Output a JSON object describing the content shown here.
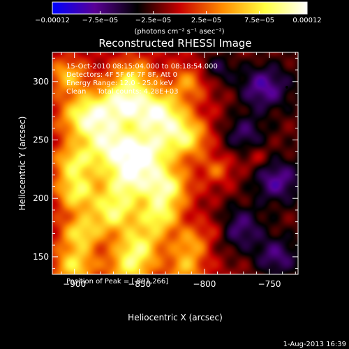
{
  "chart_data": {
    "type": "heatmap",
    "title": "Reconstructed RHESSI Image",
    "xlabel": "Heliocentric X (arcsec)",
    "ylabel": "Heliocentric Y (arcsec)",
    "xlim": [
      -917,
      -728
    ],
    "ylim": [
      135,
      325
    ],
    "x_ticks": [
      {
        "value": -900,
        "label": "−900"
      },
      {
        "value": -850,
        "label": "−850"
      },
      {
        "value": -800,
        "label": "−800"
      },
      {
        "value": -750,
        "label": "−750"
      }
    ],
    "y_ticks": [
      {
        "value": 150,
        "label": "150"
      },
      {
        "value": 200,
        "label": "200"
      },
      {
        "value": 250,
        "label": "250"
      },
      {
        "value": 300,
        "label": "300"
      }
    ],
    "colorbar": {
      "min": -0.00012,
      "max": 0.00012,
      "unit_label": "(photons cm⁻² s⁻¹ asec⁻²)",
      "ticks": [
        {
          "value": -0.00012,
          "label": "−0.00012"
        },
        {
          "value": -7.5e-05,
          "label": "−7.5e−05"
        },
        {
          "value": -2.5e-05,
          "label": "−2.5e−05"
        },
        {
          "value": 2.5e-05,
          "label": "2.5e−05"
        },
        {
          "value": 7.5e-05,
          "label": "7.5e−05"
        },
        {
          "value": 0.00012,
          "label": "0.00012"
        }
      ],
      "colors": [
        "#0000ff",
        "#5a0096",
        "#000000",
        "#c80000",
        "#ff8c00",
        "#ffff40",
        "#ffffff"
      ]
    },
    "info_lines": [
      "15-Oct-2010 08:15:04.000 to 08:18:54.000",
      "Detectors: 4F 5F 6F 7F 8F, Att 0",
      "Energy Range: 12.0 - 25.0 keV",
      "Clean     Total counts: 4.28E+03"
    ],
    "peak_text": "Position of Peak = [-891,266]",
    "sources": [
      {
        "x": -890,
        "y": 270,
        "amp": 1.0,
        "sigma": 14
      },
      {
        "x": -862,
        "y": 282,
        "amp": 0.95,
        "sigma": 13
      },
      {
        "x": -835,
        "y": 272,
        "amp": 1.05,
        "sigma": 14
      },
      {
        "x": -815,
        "y": 252,
        "amp": 0.8,
        "sigma": 12
      },
      {
        "x": -872,
        "y": 245,
        "amp": 0.95,
        "sigma": 14
      },
      {
        "x": -845,
        "y": 238,
        "amp": 1.0,
        "sigma": 13
      },
      {
        "x": -900,
        "y": 230,
        "amp": 0.75,
        "sigma": 11
      },
      {
        "x": -860,
        "y": 215,
        "amp": 0.9,
        "sigma": 13
      },
      {
        "x": -830,
        "y": 210,
        "amp": 0.95,
        "sigma": 12
      },
      {
        "x": -898,
        "y": 205,
        "amp": 0.8,
        "sigma": 11
      },
      {
        "x": -870,
        "y": 188,
        "amp": 0.85,
        "sigma": 12
      },
      {
        "x": -835,
        "y": 185,
        "amp": 0.8,
        "sigma": 11
      },
      {
        "x": -895,
        "y": 170,
        "amp": 0.75,
        "sigma": 11
      },
      {
        "x": -850,
        "y": 160,
        "amp": 0.75,
        "sigma": 12
      },
      {
        "x": -810,
        "y": 162,
        "amp": 0.5,
        "sigma": 10
      },
      {
        "x": -900,
        "y": 142,
        "amp": 0.75,
        "sigma": 11
      },
      {
        "x": -858,
        "y": 140,
        "amp": 0.7,
        "sigma": 12
      },
      {
        "x": -815,
        "y": 140,
        "amp": 0.55,
        "sigma": 10
      },
      {
        "x": -905,
        "y": 305,
        "amp": 0.6,
        "sigma": 10
      },
      {
        "x": -855,
        "y": 305,
        "amp": 0.55,
        "sigma": 11
      },
      {
        "x": -812,
        "y": 300,
        "amp": 0.45,
        "sigma": 10
      },
      {
        "x": -790,
        "y": 225,
        "amp": 0.35,
        "sigma": 8
      },
      {
        "x": -760,
        "y": 235,
        "amp": 0.25,
        "sigma": 7
      },
      {
        "x": -790,
        "y": 175,
        "amp": 0.3,
        "sigma": 8
      },
      {
        "x": -745,
        "y": 215,
        "amp": -0.6,
        "sigma": 13
      },
      {
        "x": -755,
        "y": 295,
        "amp": -0.65,
        "sigma": 14
      },
      {
        "x": -775,
        "y": 175,
        "amp": -0.6,
        "sigma": 14
      },
      {
        "x": -770,
        "y": 255,
        "amp": -0.5,
        "sigma": 12
      },
      {
        "x": -745,
        "y": 150,
        "amp": -0.5,
        "sigma": 12
      },
      {
        "x": -790,
        "y": 312,
        "amp": -0.45,
        "sigma": 10
      }
    ]
  },
  "footer": {
    "date": "1-Aug-2013 16:39"
  }
}
